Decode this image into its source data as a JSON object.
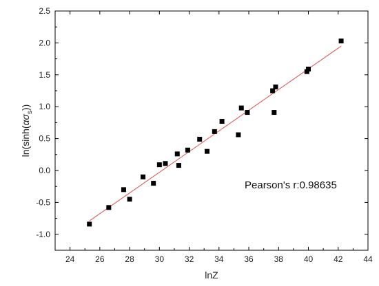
{
  "chart_data": {
    "type": "scatter",
    "title": "",
    "xlabel": "lnZ",
    "ylabel_parts": {
      "prefix": "ln(sinh(",
      "greek": "ασ",
      "subscript": "s",
      "suffix": "))"
    },
    "xlim": [
      23,
      44
    ],
    "ylim": [
      -1.25,
      2.5
    ],
    "xticks": [
      24,
      26,
      28,
      30,
      32,
      34,
      36,
      38,
      40,
      42,
      44
    ],
    "yticks": [
      -1.0,
      -0.5,
      0.0,
      0.5,
      1.0,
      1.5,
      2.0,
      2.5
    ],
    "grid": false,
    "legend": "none",
    "annotation": "Pearson's r:0.98635",
    "colors": {
      "points": "#000000",
      "fit_line": "#e0504a",
      "axes": "#000000"
    },
    "series": [
      {
        "points": [
          [
            25.3,
            -0.84
          ],
          [
            26.6,
            -0.58
          ],
          [
            27.6,
            -0.3
          ],
          [
            28.0,
            -0.45
          ],
          [
            28.9,
            -0.1
          ],
          [
            29.6,
            -0.2
          ],
          [
            30.0,
            0.09
          ],
          [
            30.4,
            0.11
          ],
          [
            31.2,
            0.26
          ],
          [
            31.3,
            0.08
          ],
          [
            31.9,
            0.32
          ],
          [
            32.7,
            0.49
          ],
          [
            33.2,
            0.3
          ],
          [
            33.7,
            0.61
          ],
          [
            34.2,
            0.77
          ],
          [
            35.3,
            0.56
          ],
          [
            35.5,
            0.98
          ],
          [
            35.9,
            0.91
          ],
          [
            37.6,
            1.25
          ],
          [
            37.7,
            0.91
          ],
          [
            37.8,
            1.31
          ],
          [
            39.9,
            1.55
          ],
          [
            40.0,
            1.59
          ],
          [
            42.2,
            2.03
          ]
        ]
      },
      {
        "fit_line": {
          "x": [
            25.3,
            42.2
          ],
          "y": [
            -0.79,
            1.95
          ]
        }
      }
    ]
  }
}
